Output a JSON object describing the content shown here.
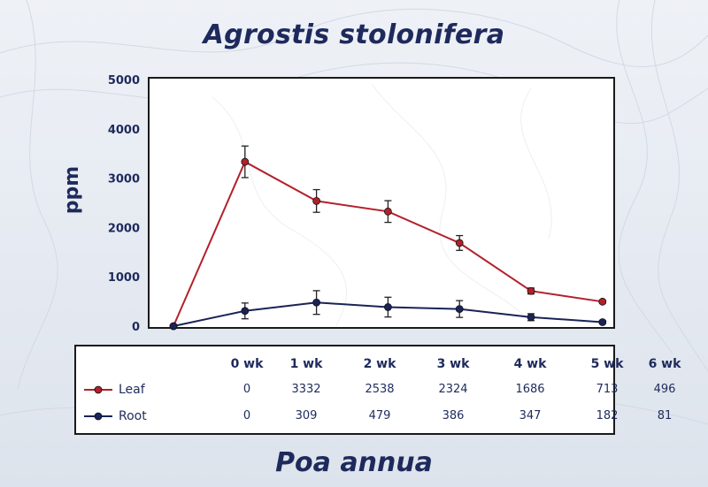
{
  "chart_data": {
    "type": "line",
    "title": "Agrostis stolonifera",
    "subtitle": "Poa annua",
    "xlabel": "",
    "ylabel": "ppm",
    "ylim": [
      0,
      5000
    ],
    "yticks": [
      0,
      1000,
      2000,
      3000,
      4000,
      5000
    ],
    "categories": [
      "0 wk",
      "1 wk",
      "2 wk",
      "3 wk",
      "4 wk",
      "5 wk",
      "6 wk"
    ],
    "series": [
      {
        "name": "Leaf",
        "color": "#b3202a",
        "values": [
          0,
          3332,
          2538,
          2324,
          1686,
          713,
          496
        ],
        "errors": [
          0,
          320,
          230,
          220,
          150,
          60,
          30
        ]
      },
      {
        "name": "Root",
        "color": "#1a2358",
        "values": [
          0,
          309,
          479,
          386,
          347,
          182,
          81
        ],
        "errors": [
          0,
          160,
          240,
          200,
          170,
          70,
          30
        ]
      }
    ],
    "table": {
      "headers": [
        "0 wk",
        "1 wk",
        "2 wk",
        "3 wk",
        "4 wk",
        "5 wk",
        "6 wk"
      ],
      "rows": [
        {
          "label": "Leaf",
          "values": [
            "0",
            "3332",
            "2538",
            "2324",
            "1686",
            "713",
            "496"
          ]
        },
        {
          "label": "Root",
          "values": [
            "0",
            "309",
            "479",
            "386",
            "347",
            "182",
            "81"
          ]
        }
      ]
    },
    "grid": false,
    "legend_placement": "table-left"
  }
}
